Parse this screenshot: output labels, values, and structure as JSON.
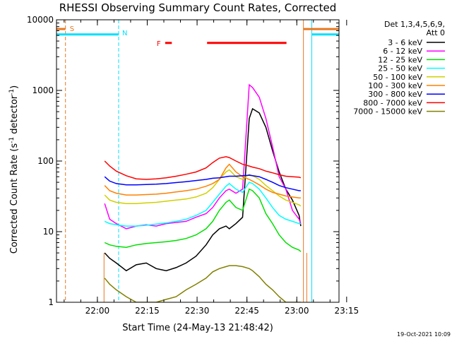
{
  "chart_data": {
    "type": "line",
    "title": "RHESSI Observing Summary Count Rates, Corrected",
    "xlabel": "Start Time (24-May-13 21:48:42)",
    "ylabel_main": "Corrected Count Rate (s",
    "ylabel_sup1": "-1",
    "ylabel_mid": " detector",
    "ylabel_sup2": "-1",
    "ylabel_end": ")",
    "y_scale": "log",
    "ylim": [
      1,
      10000
    ],
    "xlim_min": [
      -1,
      84
    ],
    "x_tick_min": [
      11.3,
      26.3,
      41.3,
      56.3,
      71.3,
      86.3
    ],
    "x_tick_labels": [
      "22:00",
      "22:15",
      "22:30",
      "22:45",
      "23:00",
      "23:15"
    ],
    "y_ticks": [
      1,
      10,
      100,
      1000,
      10000
    ],
    "y_tick_labels": [
      "1",
      "10",
      "100",
      "1000",
      "10000"
    ],
    "legend_position": "right",
    "legend_header": [
      "Det 1,3,4,5,6,9,",
      "Att 0"
    ],
    "footer_date": "19-Oct-2021 10:09",
    "flags": {
      "S_label": "S",
      "N_label": "N",
      "F_label": "F",
      "saa_min": [
        1.7,
        73.3
      ],
      "night_min": [
        17.7,
        75.8
      ],
      "flare_bars_min": [
        [
          31.7,
          33.7
        ],
        [
          44.3,
          68.2
        ]
      ],
      "data_gaps_min": [
        [
          13.3,
          74.3
        ]
      ],
      "colors": {
        "saa": "#e87820",
        "night": "#00e0ff",
        "flare": "#ff0000"
      }
    },
    "series": [
      {
        "name": "3 - 6 keV",
        "color": "#000000",
        "x": [
          13.5,
          15,
          17,
          20,
          23,
          26,
          29,
          32,
          35,
          38,
          41,
          44,
          46,
          48,
          50,
          51,
          53,
          55,
          57,
          58,
          60,
          62,
          64,
          66,
          68,
          70,
          72,
          72.5
        ],
        "y": [
          5,
          4.2,
          3.6,
          2.8,
          3.4,
          3.6,
          3.0,
          2.8,
          3.1,
          3.6,
          4.5,
          6.5,
          9,
          11,
          12,
          11,
          13,
          16,
          400,
          550,
          480,
          300,
          140,
          70,
          40,
          28,
          17,
          12
        ]
      },
      {
        "name": "6 - 12 keV",
        "color": "#ff00ff",
        "x": [
          13.5,
          15,
          17,
          20,
          23,
          26,
          29,
          32,
          35,
          38,
          41,
          44,
          46,
          48,
          50,
          51,
          53,
          55,
          57,
          58,
          60,
          62,
          64,
          66,
          68,
          70,
          72,
          72.5
        ],
        "y": [
          25,
          15,
          13,
          11,
          12,
          12.5,
          12,
          13,
          13.5,
          14,
          16,
          18,
          22,
          30,
          38,
          40,
          35,
          40,
          1200,
          1100,
          800,
          400,
          160,
          60,
          40,
          20,
          15,
          13
        ]
      },
      {
        "name": "12 - 25 keV",
        "color": "#00e000",
        "x": [
          13.5,
          15,
          17,
          20,
          23,
          26,
          29,
          32,
          35,
          38,
          41,
          44,
          46,
          48,
          50,
          51,
          53,
          55,
          57,
          58,
          60,
          62,
          64,
          66,
          68,
          70,
          72,
          72.5
        ],
        "y": [
          7,
          6.5,
          6.2,
          6,
          6.5,
          6.8,
          7,
          7.2,
          7.5,
          8,
          9,
          11,
          14,
          20,
          26,
          28,
          22,
          20,
          40,
          38,
          30,
          18,
          13,
          9,
          7,
          6,
          5.5,
          5.2
        ]
      },
      {
        "name": "25 - 50 keV",
        "color": "#00ffff",
        "x": [
          13.5,
          15,
          17,
          20,
          23,
          26,
          29,
          32,
          35,
          38,
          41,
          44,
          46,
          48,
          50,
          51,
          53,
          55,
          57,
          58,
          60,
          62,
          64,
          66,
          68,
          70,
          72,
          72.5
        ],
        "y": [
          14,
          13,
          12.5,
          12,
          12,
          12.3,
          12.8,
          13.3,
          14,
          15,
          17,
          20,
          26,
          34,
          44,
          48,
          40,
          36,
          50,
          48,
          40,
          30,
          22,
          17,
          15,
          14,
          13,
          13
        ]
      },
      {
        "name": "50 - 100 keV",
        "color": "#d0d000",
        "x": [
          13.5,
          15,
          17,
          20,
          23,
          26,
          29,
          32,
          35,
          38,
          41,
          44,
          46,
          48,
          50,
          51,
          53,
          55,
          57,
          58,
          60,
          62,
          64,
          66,
          68,
          70,
          72,
          72.5
        ],
        "y": [
          33,
          28,
          26,
          25,
          25,
          25.5,
          26,
          27,
          28,
          29,
          31,
          35,
          42,
          55,
          70,
          75,
          60,
          55,
          65,
          62,
          55,
          45,
          38,
          32,
          28,
          26,
          24,
          23
        ]
      },
      {
        "name": "100 - 300 keV",
        "color": "#ff8000",
        "x": [
          13.5,
          15,
          17,
          20,
          23,
          26,
          29,
          32,
          35,
          38,
          41,
          44,
          46,
          48,
          50,
          51,
          53,
          55,
          57,
          58,
          60,
          62,
          64,
          66,
          68,
          70,
          72,
          72.5
        ],
        "y": [
          45,
          38,
          35,
          33,
          33,
          33.5,
          34,
          35,
          36.5,
          38,
          40,
          44,
          48,
          55,
          80,
          90,
          70,
          60,
          55,
          52,
          46,
          40,
          36,
          34,
          32,
          31,
          30,
          30
        ]
      },
      {
        "name": "300 - 800 keV",
        "color": "#0000ff",
        "x": [
          13.5,
          15,
          17,
          20,
          23,
          26,
          29,
          32,
          35,
          38,
          41,
          44,
          46,
          48,
          50,
          51,
          53,
          55,
          57,
          58,
          60,
          62,
          64,
          66,
          68,
          70,
          72,
          72.5
        ],
        "y": [
          60,
          52,
          48,
          46,
          46,
          46.5,
          47,
          48,
          49.5,
          51,
          53,
          55,
          57,
          58,
          60,
          61,
          61,
          62,
          63,
          62,
          60,
          55,
          50,
          45,
          42,
          40,
          38,
          38
        ]
      },
      {
        "name": "800 - 7000 keV",
        "color": "#ff0000",
        "x": [
          13.5,
          15,
          17,
          20,
          23,
          26,
          29,
          32,
          35,
          38,
          41,
          44,
          46,
          48,
          50,
          51,
          53,
          55,
          57,
          58,
          60,
          62,
          64,
          66,
          68,
          70,
          72,
          72.5
        ],
        "y": [
          100,
          85,
          72,
          62,
          56,
          55,
          56,
          58,
          61,
          65,
          70,
          80,
          95,
          110,
          115,
          112,
          100,
          90,
          85,
          82,
          78,
          72,
          68,
          64,
          61,
          60,
          59,
          58
        ]
      },
      {
        "name": "7000 - 15000 keV",
        "color": "#808000",
        "x": [
          13.5,
          15,
          17,
          20,
          23,
          26,
          29,
          32,
          35,
          38,
          41,
          44,
          46,
          48,
          50,
          51,
          53,
          55,
          57,
          58,
          60,
          62,
          64,
          66,
          68,
          70,
          72,
          72.5
        ],
        "y": [
          2.2,
          1.8,
          1.5,
          1.2,
          1.0,
          1.0,
          1.0,
          1.1,
          1.2,
          1.5,
          1.8,
          2.2,
          2.7,
          3.0,
          3.2,
          3.3,
          3.3,
          3.2,
          3.0,
          2.8,
          2.3,
          1.8,
          1.5,
          1.2,
          1.0,
          1.0,
          1.0,
          1.0
        ]
      }
    ]
  }
}
